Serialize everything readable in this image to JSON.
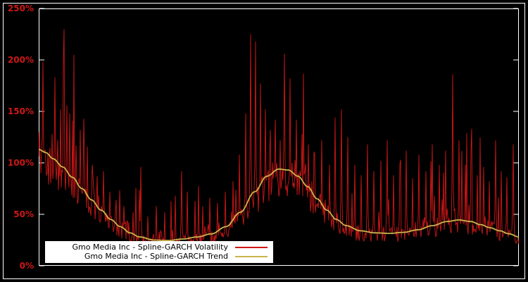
{
  "colors": {
    "background": "#000000",
    "frame": "#ffffff",
    "tick_label": "#cf1717",
    "legend_background": "#ffffff",
    "legend_text": "#000000"
  },
  "chart_data": {
    "type": "line",
    "title": "",
    "xlabel": "",
    "ylabel": "",
    "grid": false,
    "legend_position": "bottom-left",
    "ylim": [
      0,
      250
    ],
    "yticks": [
      0,
      50,
      100,
      150,
      200,
      250
    ],
    "ytick_labels": [
      "0%",
      "50%",
      "100%",
      "150%",
      "200%",
      "250%"
    ],
    "xtick_labels": [],
    "series": [
      {
        "name": "Gmo Media Inc - Spline-GARCH Volatility",
        "color": "#cf1717",
        "style": "spiky"
      },
      {
        "name": "Gmo Media Inc - Spline-GARCH Trend",
        "color": "#c9b64b",
        "style": "smooth"
      }
    ],
    "trend_points": [
      [
        0,
        113
      ],
      [
        0.015,
        110
      ],
      [
        0.03,
        104
      ],
      [
        0.05,
        96
      ],
      [
        0.07,
        86
      ],
      [
        0.09,
        75
      ],
      [
        0.11,
        64
      ],
      [
        0.13,
        54
      ],
      [
        0.15,
        45
      ],
      [
        0.17,
        38
      ],
      [
        0.19,
        32
      ],
      [
        0.21,
        28
      ],
      [
        0.24,
        25
      ],
      [
        0.27,
        24.5
      ],
      [
        0.3,
        26
      ],
      [
        0.33,
        28
      ],
      [
        0.36,
        31
      ],
      [
        0.39,
        38
      ],
      [
        0.42,
        52
      ],
      [
        0.45,
        72
      ],
      [
        0.475,
        87
      ],
      [
        0.5,
        94
      ],
      [
        0.52,
        93
      ],
      [
        0.54,
        87
      ],
      [
        0.56,
        77
      ],
      [
        0.58,
        65
      ],
      [
        0.6,
        54
      ],
      [
        0.62,
        45
      ],
      [
        0.64,
        39
      ],
      [
        0.67,
        34
      ],
      [
        0.7,
        32
      ],
      [
        0.73,
        31.5
      ],
      [
        0.76,
        32.5
      ],
      [
        0.79,
        35
      ],
      [
        0.82,
        39
      ],
      [
        0.85,
        43
      ],
      [
        0.875,
        44.5
      ],
      [
        0.9,
        43
      ],
      [
        0.92,
        40
      ],
      [
        0.94,
        37
      ],
      [
        0.96,
        34
      ],
      [
        0.98,
        31
      ],
      [
        1.0,
        28
      ]
    ],
    "spikes": [
      [
        0.028,
        128
      ],
      [
        0.034,
        183
      ],
      [
        0.04,
        122
      ],
      [
        0.046,
        152
      ],
      [
        0.051,
        196
      ],
      [
        0.058,
        135
      ],
      [
        0.064,
        148
      ],
      [
        0.071,
        141
      ],
      [
        0.078,
        117
      ],
      [
        0.086,
        132
      ],
      [
        0.094,
        143
      ],
      [
        0.101,
        116
      ],
      [
        0.112,
        98
      ],
      [
        0.121,
        87
      ],
      [
        0.135,
        92
      ],
      [
        0.148,
        72
      ],
      [
        0.162,
        64
      ],
      [
        0.178,
        58
      ],
      [
        0.196,
        52
      ],
      [
        0.213,
        96
      ],
      [
        0.228,
        48
      ],
      [
        0.245,
        58
      ],
      [
        0.262,
        52
      ],
      [
        0.285,
        68
      ],
      [
        0.298,
        92
      ],
      [
        0.31,
        72
      ],
      [
        0.325,
        63
      ],
      [
        0.342,
        58
      ],
      [
        0.356,
        66
      ],
      [
        0.372,
        61
      ],
      [
        0.388,
        72
      ],
      [
        0.404,
        82
      ],
      [
        0.418,
        108
      ],
      [
        0.431,
        148
      ],
      [
        0.442,
        225
      ],
      [
        0.452,
        218
      ],
      [
        0.462,
        177
      ],
      [
        0.472,
        152
      ],
      [
        0.483,
        132
      ],
      [
        0.492,
        142
      ],
      [
        0.503,
        122
      ],
      [
        0.512,
        206
      ],
      [
        0.524,
        182
      ],
      [
        0.536,
        142
      ],
      [
        0.548,
        128
      ],
      [
        0.561,
        118
      ],
      [
        0.575,
        108
      ],
      [
        0.59,
        122
      ],
      [
        0.605,
        98
      ],
      [
        0.618,
        144
      ],
      [
        0.63,
        152
      ],
      [
        0.644,
        125
      ],
      [
        0.658,
        98
      ],
      [
        0.672,
        88
      ],
      [
        0.685,
        118
      ],
      [
        0.698,
        92
      ],
      [
        0.712,
        102
      ],
      [
        0.726,
        122
      ],
      [
        0.739,
        88
      ],
      [
        0.752,
        98
      ],
      [
        0.765,
        112
      ],
      [
        0.778,
        85
      ],
      [
        0.792,
        108
      ],
      [
        0.806,
        92
      ],
      [
        0.82,
        118
      ],
      [
        0.835,
        98
      ],
      [
        0.848,
        112
      ],
      [
        0.862,
        186
      ],
      [
        0.875,
        122
      ],
      [
        0.888,
        98
      ],
      [
        0.9,
        112
      ],
      [
        0.913,
        88
      ],
      [
        0.926,
        96
      ],
      [
        0.938,
        82
      ],
      [
        0.951,
        122
      ],
      [
        0.963,
        92
      ],
      [
        0.975,
        86
      ],
      [
        0.988,
        118
      ]
    ],
    "noise": {
      "seed": 42,
      "spike_prob": 0.045
    }
  }
}
